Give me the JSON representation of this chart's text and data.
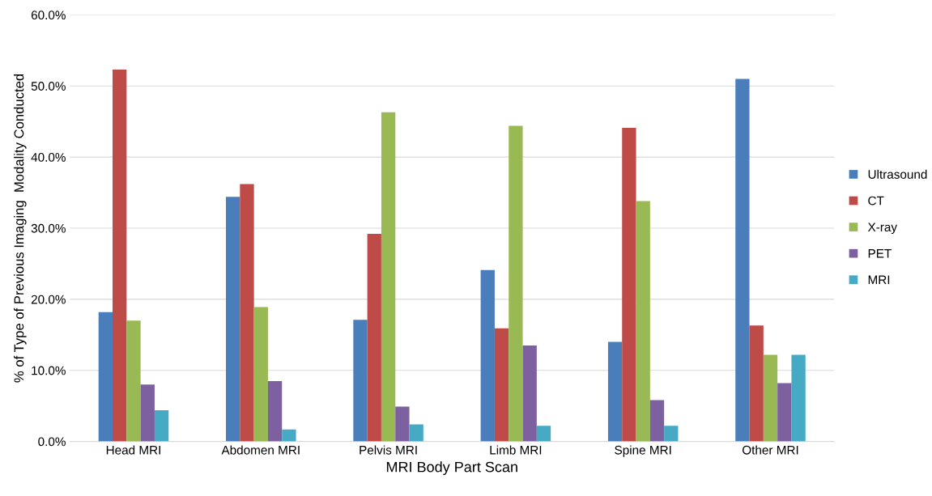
{
  "chart_data": {
    "type": "bar",
    "xlabel": "MRI Body Part Scan",
    "ylabel": "% of Type of Previous Imaging  Modality Conducted",
    "categories": [
      "Head MRI",
      "Abdomen MRI",
      "Pelvis MRI",
      "Limb MRI",
      "Spine MRI",
      "Other MRI"
    ],
    "series": [
      {
        "name": "Ultrasound",
        "color": "#4a7ebb",
        "values": [
          18.2,
          34.4,
          17.1,
          24.1,
          14.0,
          51.0
        ]
      },
      {
        "name": "CT",
        "color": "#be4b48",
        "values": [
          52.3,
          36.2,
          29.2,
          15.9,
          44.1,
          16.3
        ]
      },
      {
        "name": "X-ray",
        "color": "#98b954",
        "values": [
          17.0,
          18.9,
          46.3,
          44.4,
          33.8,
          12.2
        ]
      },
      {
        "name": "PET",
        "color": "#7d60a0",
        "values": [
          8.0,
          8.5,
          4.9,
          13.5,
          5.8,
          8.2
        ]
      },
      {
        "name": "MRI",
        "color": "#46aac5",
        "values": [
          4.4,
          1.7,
          2.4,
          2.2,
          2.2,
          12.2
        ]
      }
    ],
    "ylim": [
      0,
      60
    ],
    "yticks": [
      {
        "value": 0,
        "label": "0.0%"
      },
      {
        "value": 10,
        "label": "10.0%"
      },
      {
        "value": 20,
        "label": "20.0%"
      },
      {
        "value": 30,
        "label": "30.0%"
      },
      {
        "value": 40,
        "label": "40.0%"
      },
      {
        "value": 50,
        "label": "50.0%"
      },
      {
        "value": 60,
        "label": "60.0%"
      }
    ],
    "grid": "y",
    "legend": "right"
  }
}
